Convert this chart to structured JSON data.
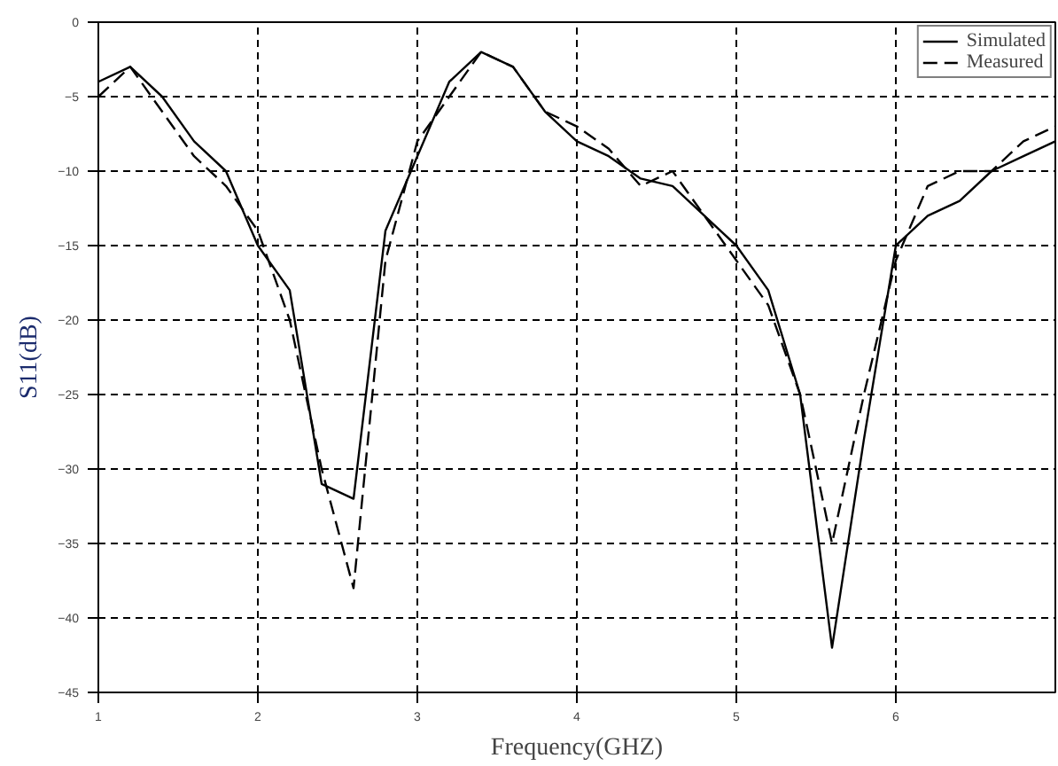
{
  "chart_data": {
    "type": "line",
    "xlabel": "Frequency(GHZ)",
    "ylabel": "S11(dB)",
    "x": [
      1,
      1.2,
      1.4,
      1.6,
      1.8,
      2,
      2.2,
      2.4,
      2.6,
      2.8,
      3,
      3.2,
      3.4,
      3.6,
      3.8,
      4,
      4.2,
      4.4,
      4.6,
      4.8,
      5,
      5.2,
      5.4,
      5.6,
      5.8,
      6,
      6.2,
      6.4,
      6.6,
      6.8,
      7
    ],
    "series": [
      {
        "name": "Simulated",
        "color": "#000000",
        "line_style": "solid",
        "values": [
          -4,
          -3,
          -5,
          -8,
          -10,
          -15,
          -18,
          -31,
          -32,
          -14,
          -9,
          -4,
          -2,
          -3,
          -6,
          -8,
          -9,
          -10.5,
          -11,
          -13,
          -15,
          -18,
          -25,
          -42,
          -28,
          -15,
          -13,
          -12,
          -10,
          -9,
          -8
        ]
      },
      {
        "name": "Measured",
        "color": "#000000",
        "line_style": "dashed",
        "values": [
          -5,
          -3,
          -6,
          -9,
          -11,
          -14,
          -20,
          -30,
          -38,
          -16,
          -8,
          -5,
          -2,
          -3,
          -6,
          -7,
          -8.5,
          -11,
          -10,
          -13,
          -16,
          -19,
          -25,
          -35,
          -25,
          -16,
          -11,
          -10,
          -10,
          -8,
          -7
        ]
      }
    ],
    "xlim": [
      1,
      7
    ],
    "xticks": [
      1,
      2,
      3,
      4,
      5,
      6
    ],
    "ylim": [
      -45,
      0
    ],
    "yticks": [
      0,
      -5,
      -10,
      -15,
      -20,
      -25,
      -30,
      -35,
      -40,
      -45
    ],
    "grid": true,
    "legend": "top right",
    "marker": "none"
  }
}
